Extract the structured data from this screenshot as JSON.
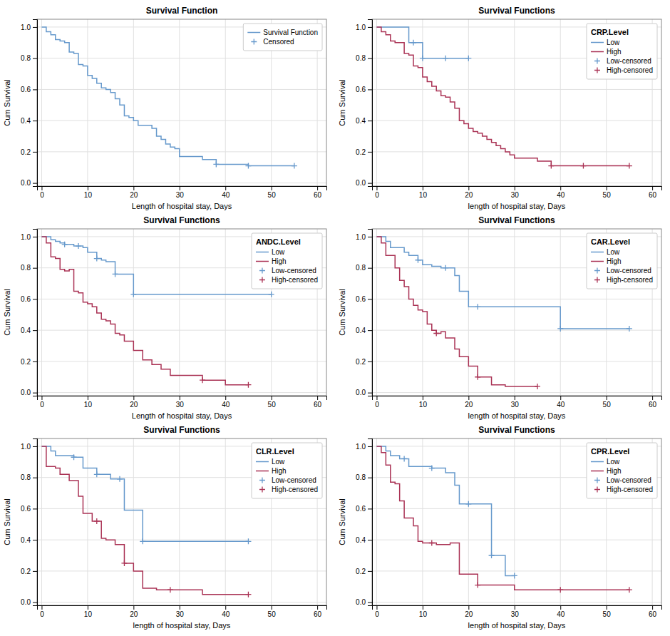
{
  "chart_data": [
    {
      "type": "line",
      "title": "Survival Function",
      "xlabel": "Length of hospital stay, Days",
      "ylabel": "Cum Survival",
      "xlim": [
        -1,
        62
      ],
      "ylim": [
        -0.02,
        1.05
      ],
      "xticks": [
        0,
        10,
        20,
        30,
        40,
        50,
        60
      ],
      "yticks": [
        {
          "value": 0,
          "label": "0.0"
        },
        0.2,
        0.4,
        0.6,
        0.8,
        {
          "value": 1,
          "label": "1.0"
        }
      ],
      "grid": true,
      "legend": "upper right",
      "series": [
        {
          "name": "Survival Function",
          "type": "step",
          "color": "#6699cc",
          "x": [
            0,
            1,
            2,
            3,
            4,
            5,
            6,
            7,
            8,
            9,
            10,
            11,
            12,
            13,
            14,
            15,
            16,
            17,
            18,
            19,
            20,
            21,
            22,
            24,
            25,
            26,
            27,
            28,
            29,
            30,
            35,
            38,
            45,
            55
          ],
          "values": [
            1.0,
            0.97,
            0.95,
            0.92,
            0.91,
            0.9,
            0.84,
            0.83,
            0.76,
            0.75,
            0.69,
            0.67,
            0.64,
            0.61,
            0.6,
            0.58,
            0.54,
            0.5,
            0.43,
            0.42,
            0.4,
            0.37,
            0.37,
            0.35,
            0.3,
            0.28,
            0.25,
            0.23,
            0.22,
            0.17,
            0.15,
            0.12,
            0.11,
            0.11
          ]
        },
        {
          "name": "Censored",
          "type": "scatter",
          "marker": "plus",
          "color": "#6699cc",
          "x": [
            38,
            45,
            55
          ],
          "values": [
            0.12,
            0.11,
            0.11
          ]
        }
      ]
    },
    {
      "type": "line",
      "title": "Survival Functions",
      "xlabel": "length of hospital stay, Days",
      "ylabel": "Cum Survival",
      "xlim": [
        -1,
        62
      ],
      "ylim": [
        -0.02,
        1.05
      ],
      "xticks": [
        0,
        10,
        20,
        30,
        40,
        50,
        60
      ],
      "yticks": [
        {
          "value": 0,
          "label": "0.0"
        },
        0.2,
        0.4,
        0.6,
        0.8,
        {
          "value": 1,
          "label": "1.0"
        }
      ],
      "grid": true,
      "legend": "upper right",
      "legend_title": "CRP.Level",
      "series": [
        {
          "name": "Low",
          "type": "step",
          "color": "#6699cc",
          "x": [
            0,
            3,
            7,
            8,
            9,
            10,
            15,
            20
          ],
          "values": [
            1.0,
            1.0,
            0.9,
            0.9,
            0.9,
            0.8,
            0.8,
            0.8
          ]
        },
        {
          "name": "High",
          "type": "step",
          "color": "#aa3355",
          "x": [
            0,
            1,
            2,
            3,
            4,
            5,
            6,
            7,
            8,
            9,
            10,
            11,
            12,
            13,
            14,
            15,
            16,
            17,
            18,
            19,
            20,
            21,
            22,
            23,
            24,
            25,
            26,
            27,
            28,
            29,
            30,
            35,
            38,
            45,
            55
          ],
          "values": [
            1.0,
            0.97,
            0.95,
            0.91,
            0.9,
            0.9,
            0.83,
            0.82,
            0.75,
            0.74,
            0.68,
            0.65,
            0.62,
            0.59,
            0.56,
            0.55,
            0.52,
            0.48,
            0.4,
            0.38,
            0.35,
            0.33,
            0.32,
            0.3,
            0.28,
            0.26,
            0.24,
            0.22,
            0.2,
            0.18,
            0.16,
            0.14,
            0.11,
            0.11,
            0.11
          ]
        },
        {
          "name": "Low-censored",
          "type": "scatter",
          "marker": "plus",
          "color": "#6699cc",
          "x": [
            8,
            10,
            15,
            20
          ],
          "values": [
            0.9,
            0.8,
            0.8,
            0.8
          ]
        },
        {
          "name": "High-censored",
          "type": "scatter",
          "marker": "plus",
          "color": "#aa3355",
          "x": [
            38,
            45,
            55
          ],
          "values": [
            0.11,
            0.11,
            0.11
          ]
        }
      ]
    },
    {
      "type": "line",
      "title": "Survival Functions",
      "xlabel": "Length of hospital stay, Days",
      "ylabel": "Cum Survival",
      "xlim": [
        -1,
        62
      ],
      "ylim": [
        -0.02,
        1.05
      ],
      "xticks": [
        0,
        10,
        20,
        30,
        40,
        50,
        60
      ],
      "yticks": [
        {
          "value": 0,
          "label": "0.0"
        },
        0.2,
        0.4,
        0.6,
        0.8,
        {
          "value": 1,
          "label": "1.0"
        }
      ],
      "grid": true,
      "legend": "upper right",
      "legend_title": "ANDC.Level",
      "series": [
        {
          "name": "Low",
          "type": "step",
          "color": "#6699cc",
          "x": [
            0,
            2,
            3,
            4,
            5,
            6,
            7,
            8,
            9,
            10,
            11,
            12,
            13,
            14,
            15,
            16,
            18,
            20,
            25,
            50
          ],
          "values": [
            1.0,
            0.98,
            0.97,
            0.96,
            0.95,
            0.95,
            0.94,
            0.94,
            0.93,
            0.9,
            0.9,
            0.86,
            0.85,
            0.84,
            0.84,
            0.76,
            0.76,
            0.63,
            0.63,
            0.63
          ]
        },
        {
          "name": "High",
          "type": "step",
          "color": "#aa3355",
          "x": [
            0,
            1,
            2,
            3,
            4,
            5,
            6,
            7,
            8,
            9,
            10,
            11,
            12,
            13,
            14,
            15,
            16,
            17,
            18,
            20,
            22,
            24,
            26,
            28,
            30,
            35,
            40,
            45
          ],
          "values": [
            1.0,
            0.96,
            0.87,
            0.86,
            0.79,
            0.78,
            0.79,
            0.65,
            0.64,
            0.58,
            0.57,
            0.55,
            0.51,
            0.47,
            0.46,
            0.44,
            0.38,
            0.37,
            0.33,
            0.27,
            0.21,
            0.18,
            0.15,
            0.11,
            0.11,
            0.08,
            0.05,
            0.05
          ]
        },
        {
          "name": "Low-censored",
          "type": "scatter",
          "marker": "plus",
          "color": "#6699cc",
          "x": [
            5,
            8,
            12,
            16,
            20,
            50
          ],
          "values": [
            0.95,
            0.94,
            0.86,
            0.76,
            0.63,
            0.63
          ]
        },
        {
          "name": "High-censored",
          "type": "scatter",
          "marker": "plus",
          "color": "#aa3355",
          "x": [
            35,
            45
          ],
          "values": [
            0.08,
            0.05
          ]
        }
      ]
    },
    {
      "type": "line",
      "title": "Survival Functions",
      "xlabel": "length of hospital stay, Days",
      "ylabel": "Cum Survival",
      "xlim": [
        -1,
        62
      ],
      "ylim": [
        -0.02,
        1.05
      ],
      "xticks": [
        0,
        10,
        20,
        30,
        40,
        50,
        60
      ],
      "yticks": [
        {
          "value": 0,
          "label": "0.0"
        },
        0.2,
        0.4,
        0.6,
        0.8,
        {
          "value": 1,
          "label": "1.0"
        }
      ],
      "grid": true,
      "legend": "upper right",
      "legend_title": "CAR.Level",
      "series": [
        {
          "name": "Low",
          "type": "step",
          "color": "#6699cc",
          "x": [
            0,
            2,
            3,
            4,
            5,
            6,
            7,
            8,
            9,
            10,
            11,
            12,
            13,
            14,
            15,
            17,
            18,
            20,
            22,
            25,
            40,
            55
          ],
          "values": [
            1.0,
            0.97,
            0.93,
            0.93,
            0.93,
            0.9,
            0.88,
            0.88,
            0.85,
            0.82,
            0.82,
            0.81,
            0.81,
            0.8,
            0.8,
            0.75,
            0.65,
            0.55,
            0.55,
            0.55,
            0.41,
            0.41
          ]
        },
        {
          "name": "High",
          "type": "step",
          "color": "#aa3355",
          "x": [
            0,
            1,
            2,
            3,
            4,
            5,
            6,
            7,
            8,
            9,
            10,
            11,
            12,
            13,
            14,
            15,
            17,
            18,
            20,
            22,
            25,
            28,
            30,
            35
          ],
          "values": [
            1.0,
            0.96,
            0.88,
            0.88,
            0.8,
            0.72,
            0.68,
            0.6,
            0.56,
            0.53,
            0.52,
            0.44,
            0.4,
            0.38,
            0.39,
            0.35,
            0.28,
            0.23,
            0.17,
            0.1,
            0.05,
            0.04,
            0.04,
            0.04
          ]
        },
        {
          "name": "Low-censored",
          "type": "scatter",
          "marker": "plus",
          "color": "#6699cc",
          "x": [
            9,
            15,
            22,
            40,
            55
          ],
          "values": [
            0.85,
            0.8,
            0.55,
            0.41,
            0.41
          ]
        },
        {
          "name": "High-censored",
          "type": "scatter",
          "marker": "plus",
          "color": "#aa3355",
          "x": [
            13,
            22,
            35
          ],
          "values": [
            0.38,
            0.1,
            0.04
          ]
        }
      ]
    },
    {
      "type": "line",
      "title": "Survival Functions",
      "xlabel": "length of hospital stay, Days",
      "ylabel": "Cum Survival",
      "xlim": [
        -1,
        62
      ],
      "ylim": [
        -0.02,
        1.05
      ],
      "xticks": [
        0,
        10,
        20,
        30,
        40,
        50,
        60
      ],
      "yticks": [
        {
          "value": 0,
          "label": "0.0"
        },
        0.2,
        0.4,
        0.6,
        0.8,
        {
          "value": 1,
          "label": "1.0"
        }
      ],
      "grid": true,
      "legend": "upper right",
      "legend_title": "CLR.Level",
      "series": [
        {
          "name": "Low",
          "type": "step",
          "color": "#6699cc",
          "x": [
            0,
            2,
            3,
            5,
            6,
            7,
            8,
            9,
            10,
            11,
            12,
            13,
            14,
            15,
            17,
            18,
            19,
            20,
            22,
            25,
            45
          ],
          "values": [
            1.0,
            0.97,
            0.94,
            0.94,
            0.94,
            0.93,
            0.93,
            0.86,
            0.86,
            0.86,
            0.82,
            0.82,
            0.82,
            0.79,
            0.79,
            0.59,
            0.59,
            0.59,
            0.39,
            0.39,
            0.39
          ]
        },
        {
          "name": "High",
          "type": "step",
          "color": "#aa3355",
          "x": [
            0,
            1,
            2,
            3,
            4,
            5,
            6,
            7,
            8,
            9,
            10,
            11,
            12,
            13,
            14,
            15,
            16,
            17,
            18,
            20,
            22,
            25,
            28,
            30,
            35,
            40,
            45
          ],
          "values": [
            1.0,
            0.87,
            0.87,
            0.86,
            0.82,
            0.82,
            0.78,
            0.78,
            0.68,
            0.57,
            0.57,
            0.52,
            0.52,
            0.41,
            0.4,
            0.4,
            0.37,
            0.37,
            0.25,
            0.2,
            0.09,
            0.08,
            0.08,
            0.08,
            0.05,
            0.05,
            0.05
          ]
        },
        {
          "name": "Low-censored",
          "type": "scatter",
          "marker": "plus",
          "color": "#6699cc",
          "x": [
            7,
            12,
            17,
            22,
            45
          ],
          "values": [
            0.93,
            0.82,
            0.79,
            0.39,
            0.39
          ]
        },
        {
          "name": "High-censored",
          "type": "scatter",
          "marker": "plus",
          "color": "#aa3355",
          "x": [
            12,
            18,
            28,
            45
          ],
          "values": [
            0.52,
            0.25,
            0.08,
            0.05
          ]
        }
      ]
    },
    {
      "type": "line",
      "title": "Survival Functions",
      "xlabel": "length of hospital stay, Days",
      "ylabel": "Cum Survival",
      "xlim": [
        -1,
        62
      ],
      "ylim": [
        -0.02,
        1.05
      ],
      "xticks": [
        0,
        10,
        20,
        30,
        40,
        50,
        60
      ],
      "yticks": [
        {
          "value": 0,
          "label": "0.0"
        },
        0.2,
        0.4,
        0.6,
        0.8,
        {
          "value": 1,
          "label": "1.0"
        }
      ],
      "grid": true,
      "legend": "upper right",
      "legend_title": "CPR.Level",
      "series": [
        {
          "name": "Low",
          "type": "step",
          "color": "#6699cc",
          "x": [
            0,
            2,
            3,
            5,
            6,
            7,
            8,
            9,
            10,
            12,
            14,
            15,
            17,
            18,
            19,
            20,
            22,
            25,
            28,
            29,
            30
          ],
          "values": [
            1.0,
            0.97,
            0.94,
            0.92,
            0.92,
            0.87,
            0.87,
            0.87,
            0.87,
            0.86,
            0.86,
            0.83,
            0.75,
            0.63,
            0.63,
            0.63,
            0.63,
            0.3,
            0.17,
            0.17,
            0.17
          ]
        },
        {
          "name": "High",
          "type": "step",
          "color": "#aa3355",
          "x": [
            0,
            1,
            2,
            3,
            4,
            5,
            6,
            7,
            8,
            9,
            10,
            11,
            12,
            13,
            14,
            15,
            16,
            18,
            20,
            22,
            25,
            28,
            30,
            35,
            40,
            45,
            55
          ],
          "values": [
            1.0,
            0.96,
            0.88,
            0.77,
            0.76,
            0.65,
            0.54,
            0.54,
            0.49,
            0.39,
            0.38,
            0.38,
            0.38,
            0.37,
            0.37,
            0.37,
            0.38,
            0.18,
            0.18,
            0.11,
            0.11,
            0.11,
            0.08,
            0.08,
            0.08,
            0.08,
            0.08
          ]
        },
        {
          "name": "Low-censored",
          "type": "scatter",
          "marker": "plus",
          "color": "#6699cc",
          "x": [
            6,
            12,
            20,
            25,
            30
          ],
          "values": [
            0.92,
            0.86,
            0.63,
            0.3,
            0.17
          ]
        },
        {
          "name": "High-censored",
          "type": "scatter",
          "marker": "plus",
          "color": "#aa3355",
          "x": [
            12,
            22,
            40,
            55
          ],
          "values": [
            0.38,
            0.11,
            0.08,
            0.08
          ]
        }
      ]
    }
  ]
}
